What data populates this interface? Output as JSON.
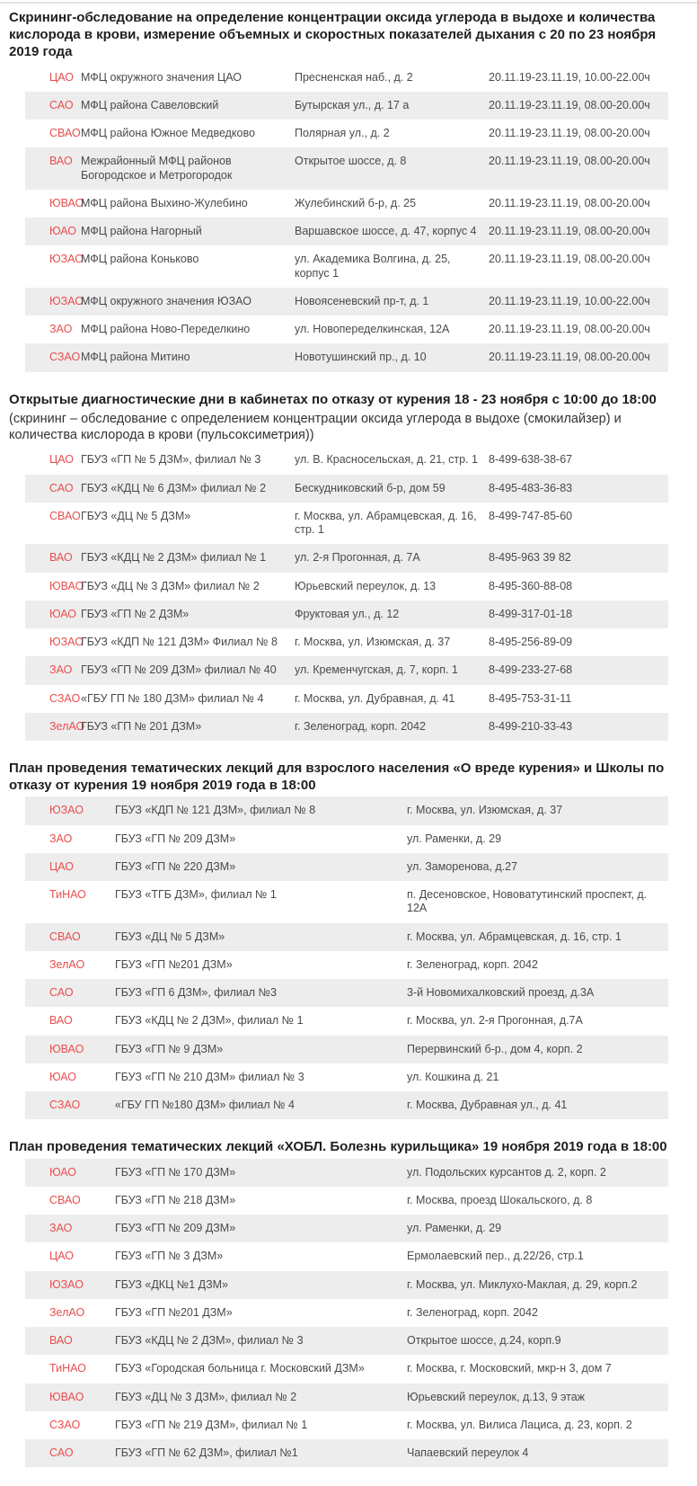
{
  "colors": {
    "accent_red": "#e74f4f",
    "stripe_gray": "#ededed"
  },
  "sections": [
    {
      "title": "Скрининг-обследование на определение концентрации оксида углерода в выдохе и количества кислорода в крови, измерение объемных и скоростных показателей дыхания с 20 по 23 ноября 2019 года",
      "rows": [
        {
          "district": "ЦАО",
          "name": "МФЦ окружного значения ЦАО",
          "address": "Пресненская наб., д. 2",
          "info": "20.11.19-23.11.19, 10.00-22.00ч"
        },
        {
          "district": "САО",
          "name": "МФЦ района Савеловский",
          "address": "Бутырская ул., д. 17 а",
          "info": "20.11.19-23.11.19, 08.00-20.00ч"
        },
        {
          "district": "СВАО",
          "name": "МФЦ района Южное Медведково",
          "address": "Полярная ул., д. 2",
          "info": "20.11.19-23.11.19, 08.00-20.00ч"
        },
        {
          "district": "ВАО",
          "name": "Межрайонный МФЦ районов Богородское и Метрогородок",
          "address": "Открытое шоссе, д. 8",
          "info": "20.11.19-23.11.19, 08.00-20.00ч"
        },
        {
          "district": "ЮВАО",
          "name": "МФЦ района Выхино-Жулебино",
          "address": "Жулебинский б-р, д. 25",
          "info": "20.11.19-23.11.19, 08.00-20.00ч"
        },
        {
          "district": "ЮАО",
          "name": "МФЦ района Нагорный",
          "address": "Варшавское шоссе, д. 47, корпус 4",
          "info": "20.11.19-23.11.19, 08.00-20.00ч"
        },
        {
          "district": "ЮЗАО",
          "name": "МФЦ района Коньково",
          "address": "ул. Академика Волгина, д. 25, корпус 1",
          "info": "20.11.19-23.11.19, 08.00-20.00ч"
        },
        {
          "district": "ЮЗАО",
          "name": "МФЦ окружного значения ЮЗАО",
          "address": "Новоясеневский пр-т, д. 1",
          "info": "20.11.19-23.11.19, 10.00-22.00ч"
        },
        {
          "district": "ЗАО",
          "name": "МФЦ района Ново-Переделкино",
          "address": "ул. Новопеределкинская, 12А",
          "info": "20.11.19-23.11.19, 08.00-20.00ч"
        },
        {
          "district": "СЗАО",
          "name": "МФЦ района Митино",
          "address": "Новотушинский пр., д. 10",
          "info": "20.11.19-23.11.19, 08.00-20.00ч"
        }
      ]
    },
    {
      "title": "Открытые диагностические дни в кабинетах по отказу от курения 18 - 23 ноября с 10:00 до 18:00",
      "subtitle": "(скрининг – обследование с определением концентрации оксида углерода в выдохе (смокилайзер) и количества кислорода в крови (пульсоксиметрия))",
      "rows": [
        {
          "district": "ЦАО",
          "name": "ГБУЗ «ГП № 5 ДЗМ», филиал № 3",
          "address": "ул. В. Красносельская, д. 21, стр. 1",
          "info": "8-499-638-38-67"
        },
        {
          "district": "САО",
          "name": "ГБУЗ «КДЦ № 6 ДЗМ» филиал № 2",
          "address": "Бескудниковский б-р, дом 59",
          "info": "8-495-483-36-83"
        },
        {
          "district": "СВАО",
          "name": "ГБУЗ «ДЦ № 5 ДЗМ»",
          "address": "г. Москва, ул. Абрамцевская, д. 16, стр. 1",
          "info": "8-499-747-85-60"
        },
        {
          "district": "ВАО",
          "name": "ГБУЗ «КДЦ № 2 ДЗМ» филиал № 1",
          "address": "ул. 2-я Прогонная, д. 7А",
          "info": "8-495-963 39 82"
        },
        {
          "district": "ЮВАО",
          "name": "ГБУЗ «ДЦ № 3 ДЗМ» филиал № 2",
          "address": "Юрьевский переулок, д. 13",
          "info": "8-495-360-88-08"
        },
        {
          "district": "ЮАО",
          "name": "ГБУЗ «ГП № 2 ДЗМ»",
          "address": "Фруктовая ул., д. 12",
          "info": "8-499-317-01-18"
        },
        {
          "district": "ЮЗАО",
          "name": "ГБУЗ «КДП № 121 ДЗМ» Филиал № 8",
          "address": "г. Москва, ул. Изюмская, д. 37",
          "info": "8-495-256-89-09"
        },
        {
          "district": "ЗАО",
          "name": "ГБУЗ «ГП № 209 ДЗМ» филиал № 40",
          "address": "ул. Кременчугская, д. 7, корп. 1",
          "info": "8-499-233-27-68"
        },
        {
          "district": "СЗАО",
          "name": "«ГБУ ГП № 180 ДЗМ» филиал № 4",
          "address": "г. Москва, ул. Дубравная, д. 41",
          "info": "8-495-753-31-11"
        },
        {
          "district": "ЗелАО",
          "name": "ГБУЗ «ГП № 201 ДЗМ»",
          "address": "г. Зеленоград, корп. 2042",
          "info": "8-499-210-33-43"
        }
      ]
    },
    {
      "title": "План проведения тематических лекций для взрослого населения «О вреде курения» и Школы по отказу от курения 19 ноября 2019 года в 18:00",
      "rows": [
        {
          "district": "ЮЗАО",
          "name": "ГБУЗ «КДП № 121 ДЗМ», филиал № 8",
          "address": "г. Москва, ул. Изюмская, д. 37"
        },
        {
          "district": "ЗАО",
          "name": "ГБУЗ «ГП № 209 ДЗМ»",
          "address": "ул. Раменки, д. 29"
        },
        {
          "district": "ЦАО",
          "name": "ГБУЗ «ГП № 220 ДЗМ»",
          "address": "ул. Заморенова, д.27"
        },
        {
          "district": "ТиНАО",
          "name": "ГБУЗ «ТГБ ДЗМ», филиал № 1",
          "address": "п. Десеновское, Нововатутинский проспект, д. 12А"
        },
        {
          "district": "СВАО",
          "name": "ГБУЗ «ДЦ № 5 ДЗМ»",
          "address": "г. Москва, ул. Абрамцевская, д. 16, стр. 1"
        },
        {
          "district": "ЗелАО",
          "name": "ГБУЗ «ГП №201 ДЗМ»",
          "address": "г. Зеленоград, корп. 2042"
        },
        {
          "district": "САО",
          "name": "ГБУЗ «ГП 6 ДЗМ», филиал №3",
          "address": "3-й Новомихалковский проезд, д.3А"
        },
        {
          "district": "ВАО",
          "name": "ГБУЗ «КДЦ № 2 ДЗМ», филиал № 1",
          "address": "г. Москва, ул. 2-я Прогонная, д.7А"
        },
        {
          "district": "ЮВАО",
          "name": "ГБУЗ «ГП № 9 ДЗМ»",
          "address": "Перервинский б-р., дом 4, корп. 2"
        },
        {
          "district": "ЮАО",
          "name": "ГБУЗ «ГП № 210 ДЗМ» филиал № 3",
          "address": "ул. Кошкина д. 21"
        },
        {
          "district": "СЗАО",
          "name": "«ГБУ ГП №180 ДЗМ» филиал № 4",
          "address": "г. Москва, Дубравная ул., д. 41"
        }
      ]
    },
    {
      "title": "План проведения тематических лекций «ХОБЛ. Болезнь курильщика» 19 ноября 2019 года в 18:00",
      "rows": [
        {
          "district": "ЮАО",
          "name": "ГБУЗ «ГП № 170 ДЗМ»",
          "address": "ул. Подольских курсантов д. 2, корп. 2"
        },
        {
          "district": "СВАО",
          "name": "ГБУЗ «ГП № 218 ДЗМ»",
          "address": "г. Москва, проезд Шокальского, д. 8"
        },
        {
          "district": "ЗАО",
          "name": "ГБУЗ «ГП № 209 ДЗМ»",
          "address": "ул. Раменки, д. 29"
        },
        {
          "district": "ЦАО",
          "name": "ГБУЗ «ГП № 3 ДЗМ»",
          "address": "Ермолаевский пер., д.22/26, стр.1"
        },
        {
          "district": "ЮЗАО",
          "name": "ГБУЗ «ДКЦ №1 ДЗМ»",
          "address": "г. Москва, ул. Миклухо-Маклая, д. 29, корп.2"
        },
        {
          "district": "ЗелАО",
          "name": "ГБУЗ «ГП №201 ДЗМ»",
          "address": "г. Зеленоград, корп. 2042"
        },
        {
          "district": "ВАО",
          "name": "ГБУЗ «КДЦ № 2 ДЗМ», филиал № 3",
          "address": "Открытое шоссе, д.24, корп.9"
        },
        {
          "district": "ТиНАО",
          "name": "ГБУЗ «Городская больница г. Московский ДЗМ»",
          "address": "г. Москва, г. Московский, мкр-н 3, дом 7"
        },
        {
          "district": "ЮВАО",
          "name": "ГБУЗ «ДЦ № 3 ДЗМ», филиал № 2",
          "address": "Юрьевский переулок, д.13, 9 этаж"
        },
        {
          "district": "СЗАО",
          "name": "ГБУЗ «ГП № 219 ДЗМ», филиал № 1",
          "address": "г. Москва, ул. Вилиса Лациса, д. 23, корп. 2"
        },
        {
          "district": "САО",
          "name": "ГБУЗ «ГП № 62 ДЗМ», филиал №1",
          "address": "Чапаевский переулок 4"
        }
      ]
    }
  ]
}
